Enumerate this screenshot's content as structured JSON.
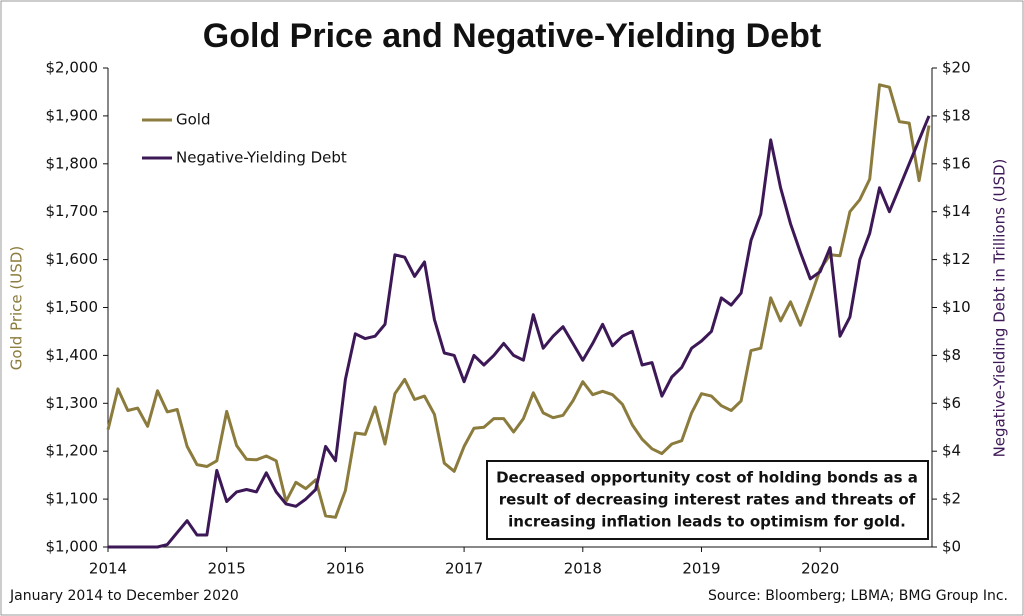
{
  "chart_data": {
    "type": "line",
    "title": "Gold Price and Negative-Yielding Debt",
    "y_label": "Gold Price (USD)",
    "y2_label": "Negative-Yielding Debt in Trillions (USD)",
    "note": "January 2014 to December 2020",
    "source": "Source: Bloomberg; LBMA; BMG Group Inc.",
    "annotation": [
      "Decreased opportunity cost of holding bonds as a",
      "result of decreasing interest rates and threats of",
      "increasing inflation leads to optimism for gold."
    ],
    "legend": "upper left",
    "categories": [
      "2014",
      null,
      null,
      null,
      null,
      null,
      null,
      null,
      null,
      null,
      null,
      null,
      "2015",
      null,
      null,
      null,
      null,
      null,
      null,
      null,
      null,
      null,
      null,
      null,
      "2016",
      null,
      null,
      null,
      null,
      null,
      null,
      null,
      null,
      null,
      null,
      null,
      "2017",
      null,
      null,
      null,
      null,
      null,
      null,
      null,
      null,
      null,
      null,
      null,
      "2018",
      null,
      null,
      null,
      null,
      null,
      null,
      null,
      null,
      null,
      null,
      null,
      "2019",
      null,
      null,
      null,
      null,
      null,
      null,
      null,
      null,
      null,
      null,
      null,
      "2020",
      null,
      null,
      null,
      null,
      null,
      null,
      null,
      null,
      null,
      null,
      null
    ],
    "series": [
      {
        "name": "Gold",
        "color": "#8b7b3c",
        "values": [
          1245,
          1330,
          1285,
          1290,
          1252,
          1326,
          1282,
          1287,
          1210,
          1172,
          1168,
          1180,
          1283,
          1212,
          1183,
          1182,
          1190,
          1180,
          1095,
          1135,
          1122,
          1140,
          1065,
          1062,
          1118,
          1238,
          1235,
          1292,
          1215,
          1320,
          1350,
          1308,
          1315,
          1277,
          1175,
          1158,
          1210,
          1248,
          1250,
          1268,
          1268,
          1240,
          1268,
          1322,
          1280,
          1270,
          1275,
          1305,
          1345,
          1318,
          1325,
          1318,
          1298,
          1255,
          1225,
          1205,
          1195,
          1215,
          1222,
          1280,
          1320,
          1315,
          1295,
          1285,
          1305,
          1410,
          1415,
          1520,
          1472,
          1512,
          1463,
          1520,
          1580,
          1610,
          1608,
          1700,
          1725,
          1768,
          1965,
          1960,
          1888,
          1885,
          1765,
          1880
        ]
      },
      {
        "name": "Negative-Yielding Debt",
        "color": "#3d1857",
        "axis": "y2",
        "values": [
          0,
          0,
          0,
          0,
          0,
          0,
          0.1,
          0.6,
          1.1,
          0.5,
          0.5,
          3.2,
          1.9,
          2.3,
          2.4,
          2.3,
          3.1,
          2.3,
          1.8,
          1.7,
          2.0,
          2.4,
          4.2,
          3.6,
          7.0,
          8.9,
          8.7,
          8.8,
          9.3,
          12.2,
          12.1,
          11.3,
          11.9,
          9.5,
          8.1,
          8.0,
          6.9,
          8.0,
          7.6,
          8.0,
          8.5,
          8.0,
          7.8,
          9.7,
          8.3,
          8.8,
          9.2,
          8.5,
          7.8,
          8.5,
          9.3,
          8.4,
          8.8,
          9.0,
          7.6,
          7.7,
          6.3,
          7.1,
          7.5,
          8.3,
          8.6,
          9.0,
          10.4,
          10.1,
          10.6,
          12.8,
          13.9,
          17.0,
          15.0,
          13.5,
          12.3,
          11.2,
          11.5,
          12.5,
          8.8,
          9.6,
          12.0,
          13.1,
          15.0,
          14.0,
          15.0,
          16.0,
          17.0,
          18.0
        ]
      }
    ],
    "ylim": [
      1000,
      2000
    ],
    "yticks": [
      {
        "value": 1000,
        "label": "$1,000"
      },
      {
        "value": 1100,
        "label": "$1,100"
      },
      {
        "value": 1200,
        "label": "$1,200"
      },
      {
        "value": 1300,
        "label": "$1,300"
      },
      {
        "value": 1400,
        "label": "$1,400"
      },
      {
        "value": 1500,
        "label": "$1,500"
      },
      {
        "value": 1600,
        "label": "$1,600"
      },
      {
        "value": 1700,
        "label": "$1,700"
      },
      {
        "value": 1800,
        "label": "$1,800"
      },
      {
        "value": 1900,
        "label": "$1,900"
      },
      {
        "value": 2000,
        "label": "$2,000"
      }
    ],
    "y2lim": [
      0,
      20
    ],
    "y2ticks": [
      {
        "value": 0,
        "label": "$0"
      },
      {
        "value": 2,
        "label": "$2"
      },
      {
        "value": 4,
        "label": "$4"
      },
      {
        "value": 6,
        "label": "$6"
      },
      {
        "value": 8,
        "label": "$8"
      },
      {
        "value": 10,
        "label": "$10"
      },
      {
        "value": 12,
        "label": "$12"
      },
      {
        "value": 14,
        "label": "$14"
      },
      {
        "value": 16,
        "label": "$16"
      },
      {
        "value": 18,
        "label": "$18"
      },
      {
        "value": 20,
        "label": "$20"
      }
    ]
  }
}
